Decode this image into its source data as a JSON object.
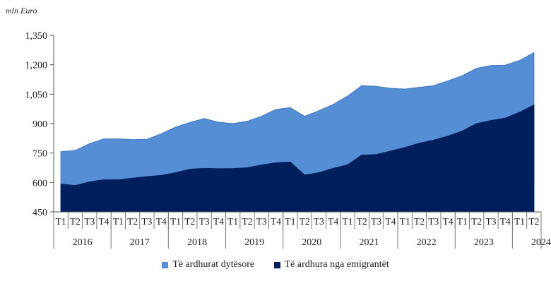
{
  "chart_data": {
    "type": "area",
    "ylabel": "mln Euro",
    "ylim": [
      450,
      1350
    ],
    "yticks": [
      "450",
      "600",
      "750",
      "900",
      "1,050",
      "1,200",
      "1,350"
    ],
    "ytick_values": [
      450,
      600,
      750,
      900,
      1050,
      1200,
      1350
    ],
    "quarters": [
      "T1",
      "T2",
      "T3",
      "T4",
      "T1",
      "T2",
      "T3",
      "T4",
      "T1",
      "T2",
      "T3",
      "T4",
      "T1",
      "T2",
      "T3",
      "T4",
      "T1",
      "T2",
      "T3",
      "T4",
      "T1",
      "T2",
      "T3",
      "T4",
      "T1",
      "T2",
      "T3",
      "T4",
      "T1",
      "T2",
      "T3",
      "T4",
      "T1",
      "T2"
    ],
    "years": [
      {
        "label": "2016",
        "start": 0,
        "count": 4
      },
      {
        "label": "2017",
        "start": 4,
        "count": 4
      },
      {
        "label": "2018",
        "start": 8,
        "count": 4
      },
      {
        "label": "2019",
        "start": 12,
        "count": 4
      },
      {
        "label": "2020",
        "start": 16,
        "count": 4
      },
      {
        "label": "2021",
        "start": 20,
        "count": 4
      },
      {
        "label": "2022",
        "start": 24,
        "count": 4
      },
      {
        "label": "2023",
        "start": 28,
        "count": 4
      },
      {
        "label": "2024",
        "start": 32,
        "count": 2
      }
    ],
    "series": [
      {
        "name": "Të ardhurat dytësore",
        "color": "#558ed5",
        "values": [
          757,
          763,
          798,
          822,
          822,
          818,
          820,
          848,
          882,
          906,
          926,
          907,
          900,
          912,
          937,
          972,
          982,
          937,
          966,
          998,
          1040,
          1094,
          1090,
          1080,
          1076,
          1085,
          1093,
          1118,
          1144,
          1182,
          1196,
          1198,
          1222,
          1262
        ]
      },
      {
        "name": "Të ardhura nga emigrantët",
        "color": "#001f5c",
        "values": [
          592,
          584,
          603,
          614,
          614,
          622,
          630,
          636,
          650,
          668,
          672,
          670,
          671,
          675,
          689,
          700,
          704,
          638,
          650,
          672,
          690,
          740,
          742,
          760,
          778,
          800,
          816,
          836,
          862,
          900,
          916,
          928,
          958,
          995
        ]
      }
    ],
    "legend_position": "bottom-center",
    "grid": false
  }
}
